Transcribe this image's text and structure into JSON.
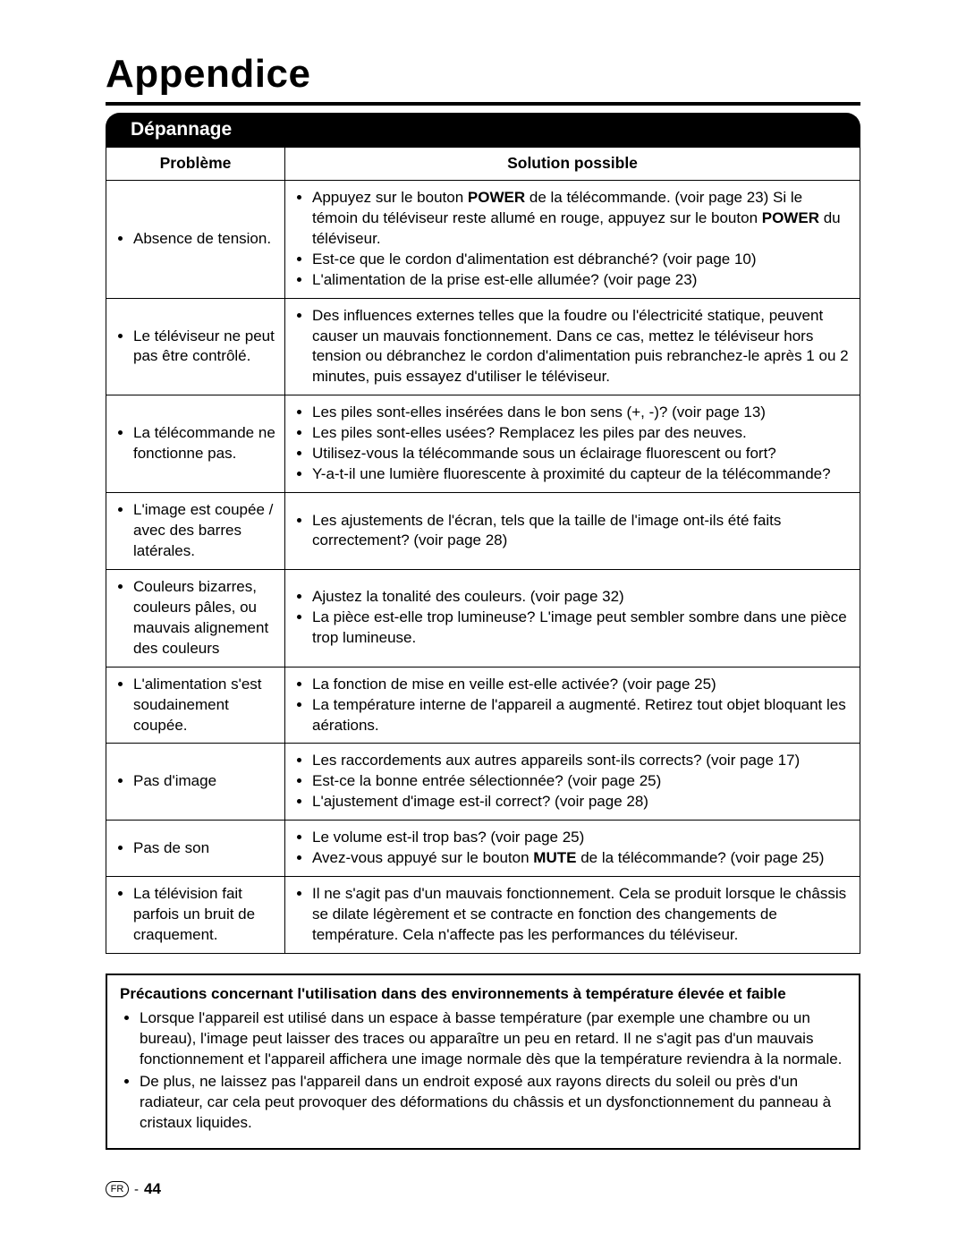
{
  "chapter_title": "Appendice",
  "section_title": "Dépannage",
  "table": {
    "headers": {
      "problem": "Problème",
      "solution": "Solution possible"
    },
    "rows": [
      {
        "problem_items": [
          "Absence de tension."
        ],
        "solution_items": [
          {
            "parts": [
              {
                "t": "Appuyez sur le bouton "
              },
              {
                "t": "POWER",
                "b": true
              },
              {
                "t": " de la télécommande. (voir page 23) Si le témoin du téléviseur reste allumé en rouge, appuyez sur le bouton "
              },
              {
                "t": "POWER",
                "b": true
              },
              {
                "t": " du téléviseur."
              }
            ]
          },
          {
            "parts": [
              {
                "t": "Est-ce que le cordon d'alimentation est débranché? (voir page 10)"
              }
            ]
          },
          {
            "parts": [
              {
                "t": "L'alimentation de la prise est-elle allumée? (voir page 23)"
              }
            ]
          }
        ]
      },
      {
        "problem_items": [
          "Le téléviseur ne peut pas être contrôlé."
        ],
        "solution_items": [
          {
            "parts": [
              {
                "t": "Des influences externes telles que la foudre ou l'électricité statique, peuvent causer un mauvais fonctionnement. Dans ce cas, mettez le télé­viseur hors tension ou débranchez le cordon d'alimentation puis rebranchez-le après 1 ou 2 minutes, puis essayez d'utiliser le téléviseur."
              }
            ]
          }
        ]
      },
      {
        "problem_items": [
          "La télécommande ne fonctionne pas."
        ],
        "solution_items": [
          {
            "parts": [
              {
                "t": "Les piles sont-elles insérées dans le bon sens (+, -)? (voir page 13)"
              }
            ]
          },
          {
            "parts": [
              {
                "t": "Les piles sont-elles usées? Remplacez les piles par des neuves."
              }
            ]
          },
          {
            "parts": [
              {
                "t": "Utilisez-vous la télécommande sous un éclairage fluorescent ou fort?"
              }
            ]
          },
          {
            "parts": [
              {
                "t": "Y-a-t-il une lumière fluorescente à proximité du capteur de la télécommande?"
              }
            ]
          }
        ]
      },
      {
        "problem_items": [
          "L'image est coupée / avec des barres latérales."
        ],
        "solution_items": [
          {
            "parts": [
              {
                "t": "Les ajustements de l'écran, tels que la taille de l'image ont-ils été faits correctement? (voir page 28)"
              }
            ]
          }
        ]
      },
      {
        "problem_items": [
          "Couleurs bizarres, couleurs pâles, ou mauvais alignement des couleurs"
        ],
        "solution_items": [
          {
            "parts": [
              {
                "t": "Ajustez la tonalité des couleurs. (voir page 32)"
              }
            ]
          },
          {
            "parts": [
              {
                "t": "La pièce est-elle trop lumineuse? L'image peut sembler sombre dans une pièce trop lumineuse."
              }
            ]
          }
        ]
      },
      {
        "problem_items": [
          "L'alimentation s'est soudainement coupée."
        ],
        "solution_items": [
          {
            "parts": [
              {
                "t": "La fonction de mise en veille est-elle activée? (voir page 25)"
              }
            ]
          },
          {
            "parts": [
              {
                "t": "La température interne de l'appareil a augmenté. Retirez tout objet blo­quant les aérations."
              }
            ]
          }
        ]
      },
      {
        "problem_items": [
          "Pas d'image"
        ],
        "solution_items": [
          {
            "parts": [
              {
                "t": "Les raccordements aux autres appareils sont-ils corrects? (voir page 17)"
              }
            ]
          },
          {
            "parts": [
              {
                "t": "Est-ce la bonne entrée sélectionnée? (voir page 25)"
              }
            ]
          },
          {
            "parts": [
              {
                "t": "L'ajustement d'image est-il correct? (voir page 28)"
              }
            ]
          }
        ]
      },
      {
        "problem_items": [
          "Pas de son"
        ],
        "solution_items": [
          {
            "parts": [
              {
                "t": "Le volume est-il trop bas? (voir page 25)"
              }
            ]
          },
          {
            "parts": [
              {
                "t": "Avez-vous appuyé sur le bouton "
              },
              {
                "t": "MUTE",
                "b": true
              },
              {
                "t": " de la télécommande? (voir page 25)"
              }
            ]
          }
        ]
      },
      {
        "problem_items": [
          "La télévision fait parfois un bruit de craquement."
        ],
        "solution_items": [
          {
            "parts": [
              {
                "t": "Il ne s'agit pas d'un mauvais fonctionnement. Cela se produit lorsque le châssis se dilate légèrement et se contracte en fonction des changements de température. Cela n'affecte pas les performances du téléviseur."
              }
            ]
          }
        ]
      }
    ]
  },
  "precautions": {
    "title": "Précautions concernant l'utilisation dans des environnements à température élevée et faible",
    "items": [
      "Lorsque l'appareil est utilisé dans un espace à basse température (par exemple une chambre ou un bureau), l'image peut laisser des traces ou apparaître un peu en retard. Il ne s'agit pas d'un mauvais fonctionnement et l'appareil affichera une image normale dès que la température reviendra à la normale.",
      "De plus, ne laissez pas l'appareil dans un endroit exposé aux rayons directs du soleil ou près d'un radiateur, car cela peut provoquer des déformations du châssis et un dysfonctionnement du panneau à cristaux liquides."
    ]
  },
  "footer": {
    "lang": "FR",
    "separator": "-",
    "page": "44"
  }
}
